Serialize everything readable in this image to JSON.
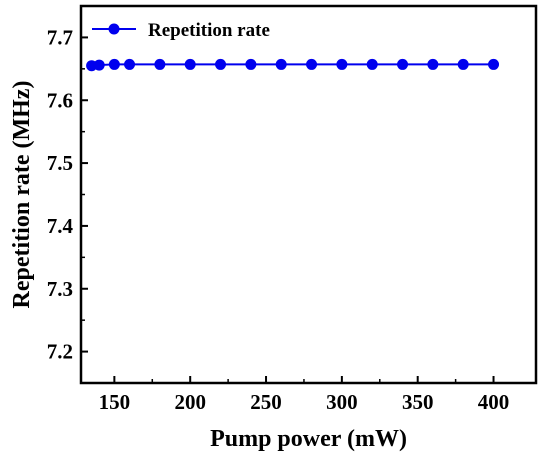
{
  "chart_data": {
    "type": "line",
    "xlabel": "Pump power (mW)",
    "ylabel": "Repetition rate (MHz)",
    "xlim": [
      128,
      428
    ],
    "ylim": [
      7.15,
      7.75
    ],
    "xticks": [
      150,
      200,
      250,
      300,
      350,
      400
    ],
    "yticks": [
      7.2,
      7.3,
      7.4,
      7.5,
      7.6,
      7.7
    ],
    "xtick_labels": [
      "150",
      "200",
      "250",
      "300",
      "350",
      "400"
    ],
    "ytick_labels": [
      "7.2",
      "7.3",
      "7.4",
      "7.5",
      "7.6",
      "7.7"
    ],
    "grid": false,
    "legend_position": "top-left",
    "series": [
      {
        "name": "Repetition rate",
        "color": "#0000ee",
        "marker": "circle",
        "x": [
          135,
          140,
          150,
          160,
          180,
          200,
          220,
          240,
          260,
          280,
          300,
          320,
          340,
          360,
          380,
          400
        ],
        "y": [
          7.655,
          7.656,
          7.657,
          7.657,
          7.657,
          7.657,
          7.657,
          7.657,
          7.657,
          7.657,
          7.657,
          7.657,
          7.657,
          7.657,
          7.657,
          7.657
        ]
      }
    ]
  }
}
